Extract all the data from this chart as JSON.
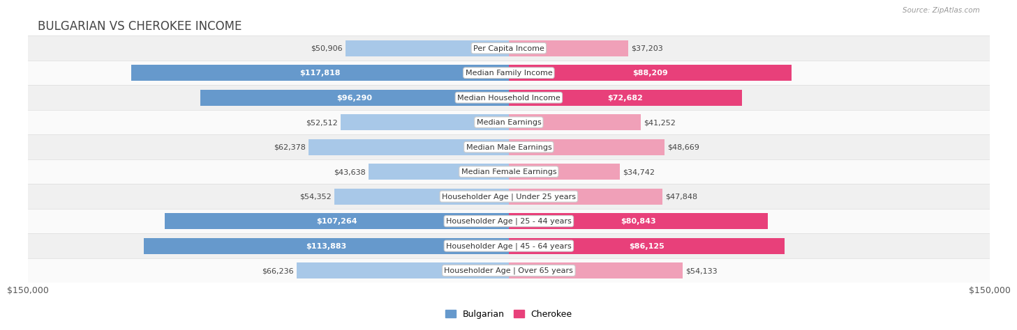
{
  "title": "BULGARIAN VS CHEROKEE INCOME",
  "source": "Source: ZipAtlas.com",
  "categories": [
    "Per Capita Income",
    "Median Family Income",
    "Median Household Income",
    "Median Earnings",
    "Median Male Earnings",
    "Median Female Earnings",
    "Householder Age | Under 25 years",
    "Householder Age | 25 - 44 years",
    "Householder Age | 45 - 64 years",
    "Householder Age | Over 65 years"
  ],
  "bulgarian_values": [
    50906,
    117818,
    96290,
    52512,
    62378,
    43638,
    54352,
    107264,
    113883,
    66236
  ],
  "cherokee_values": [
    37203,
    88209,
    72682,
    41252,
    48669,
    34742,
    47848,
    80843,
    86125,
    54133
  ],
  "bulgarian_color_light": "#a8c8e8",
  "bulgarian_color_dark": "#6699cc",
  "cherokee_color_light": "#f0a0b8",
  "cherokee_color_dark": "#e8407a",
  "cherokee_threshold": 70000,
  "max_value": 150000,
  "bg_color": "#ffffff",
  "row_bg_even": "#f0f0f0",
  "row_bg_odd": "#fafafa",
  "label_fontsize": 8.0,
  "value_fontsize": 8.0,
  "title_fontsize": 12,
  "legend_labels": [
    "Bulgarian",
    "Cherokee"
  ],
  "x_axis_label_left": "$150,000",
  "x_axis_label_right": "$150,000"
}
